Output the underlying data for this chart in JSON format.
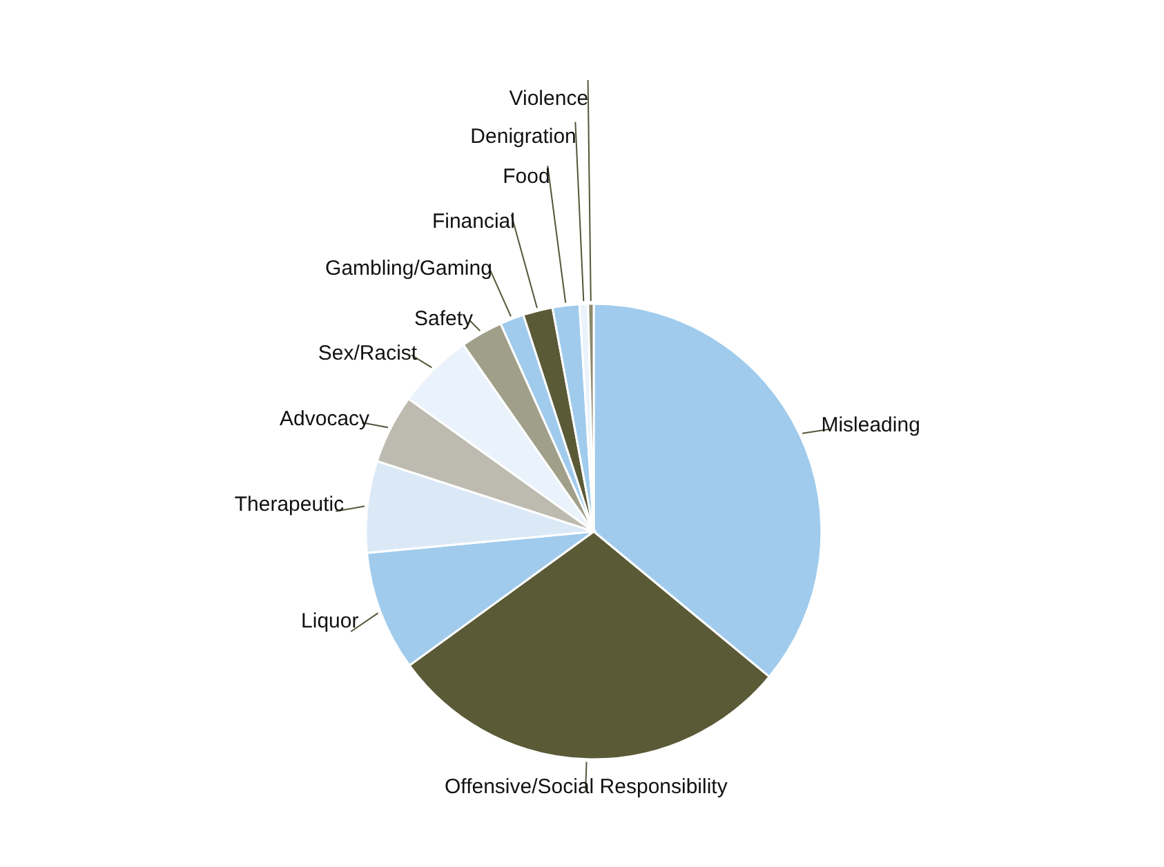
{
  "chart_data": {
    "type": "pie",
    "categories": [
      "Misleading",
      "Offensive/Social Responsibility",
      "Liquor",
      "Therapeutic",
      "Advocacy",
      "Sex/Racist",
      "Safety",
      "Gambling/Gaming",
      "Financial",
      "Food",
      "Denigration",
      "Violence"
    ],
    "values": [
      36,
      29,
      8.5,
      6.5,
      4.9,
      5.4,
      3,
      1.7,
      2.1,
      1.9,
      0.6,
      0.4
    ],
    "colors": [
      "#a0cbec",
      "#5b5a37",
      "#a0cbec",
      "#dbe9f7",
      "#bdbbaf",
      "#eaf3fb",
      "#a09f89",
      "#a0cbec",
      "#5b5a37",
      "#a0cbec",
      "#eaf3fb",
      "#8b8a6e"
    ]
  }
}
